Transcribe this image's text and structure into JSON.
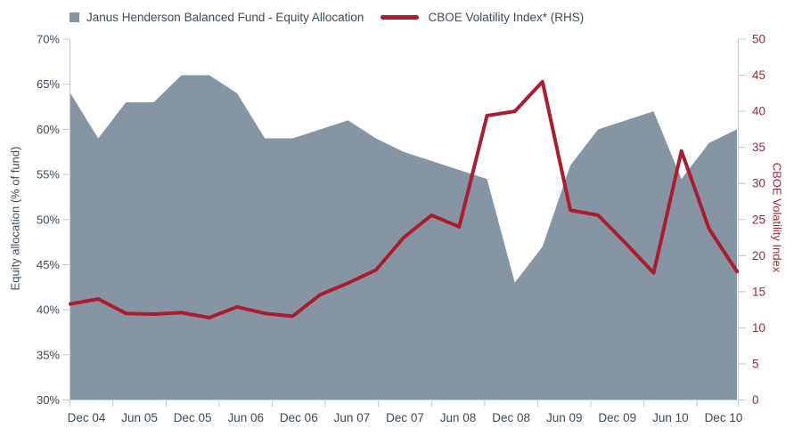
{
  "legend": {
    "equity": {
      "label": "Janus Henderson Balanced Fund - Equity Allocation",
      "color": "#8695A4",
      "marker": "square-icon"
    },
    "vix": {
      "label": "CBOE Volatility Index* (RHS)",
      "color": "#AD1C2E",
      "marker": "line-icon"
    }
  },
  "axes": {
    "left": {
      "title": "Equity allocation (% of fund)",
      "tick_labels": [
        "70%",
        "65%",
        "60%",
        "55%",
        "50%",
        "45%",
        "40%",
        "35%",
        "30%"
      ]
    },
    "right": {
      "title": "CBOE Volatility Index",
      "tick_labels": [
        "50",
        "45",
        "40",
        "35",
        "30",
        "25",
        "20",
        "15",
        "10",
        "5",
        "0"
      ]
    },
    "bottom": {
      "tick_labels": [
        "Dec 04",
        "Jun 05",
        "Dec 05",
        "Jun 06",
        "Dec 06",
        "Jun 07",
        "Dec 07",
        "Jun 08",
        "Dec 08",
        "Jun 09",
        "Dec 09",
        "Jun 10",
        "Dec 10"
      ]
    }
  },
  "colors": {
    "area": "#8695A4",
    "line": "#AD1C2E",
    "axis_text": "#3E4B57",
    "right_axis_text": "#A12A38",
    "axis_line": "#C3CAD0",
    "background": "#FFFFFF"
  },
  "chart_data": {
    "type": "combo",
    "subtype": "area+line",
    "grid": false,
    "legend_position": "top-left",
    "x": [
      "Dec 04",
      "Mar 05",
      "Jun 05",
      "Sep 05",
      "Dec 05",
      "Mar 06",
      "Jun 06",
      "Sep 06",
      "Dec 06",
      "Mar 07",
      "Jun 07",
      "Sep 07",
      "Dec 07",
      "Mar 08",
      "Jun 08",
      "Sep 08",
      "Dec 08",
      "Mar 09",
      "Jun 09",
      "Sep 09",
      "Dec 09",
      "Mar 10",
      "Jun 10",
      "Sep 10",
      "Dec 10"
    ],
    "x_tick_labels": [
      "Dec 04",
      "Jun 05",
      "Dec 05",
      "Jun 06",
      "Dec 06",
      "Jun 07",
      "Dec 07",
      "Jun 08",
      "Dec 08",
      "Jun 09",
      "Dec 09",
      "Jun 10",
      "Dec 10"
    ],
    "series": [
      {
        "name": "Janus Henderson Balanced Fund - Equity Allocation",
        "type": "area",
        "axis": "left",
        "color": "#8695A4",
        "values": [
          64,
          59,
          63,
          63,
          66,
          66,
          64,
          59,
          59,
          60,
          61,
          59,
          57.5,
          56.5,
          55.5,
          54.5,
          43,
          47,
          56,
          60,
          61,
          62,
          54.5,
          58.5,
          60
        ]
      },
      {
        "name": "CBOE Volatility Index* (RHS)",
        "type": "line",
        "axis": "right",
        "color": "#AD1C2E",
        "values": [
          13.3,
          14.0,
          12.0,
          11.9,
          12.1,
          11.4,
          12.9,
          12.0,
          11.6,
          14.6,
          16.2,
          18.0,
          22.5,
          25.6,
          24.0,
          39.4,
          40.0,
          44.1,
          26.3,
          25.6,
          21.7,
          17.6,
          34.5,
          23.7,
          17.8
        ]
      }
    ],
    "left_axis": {
      "label": "Equity allocation (% of fund)",
      "range": [
        30,
        70
      ],
      "tick_step": 5,
      "unit": "percent"
    },
    "right_axis": {
      "label": "CBOE Volatility Index",
      "range": [
        0,
        50
      ],
      "tick_step": 5
    }
  }
}
